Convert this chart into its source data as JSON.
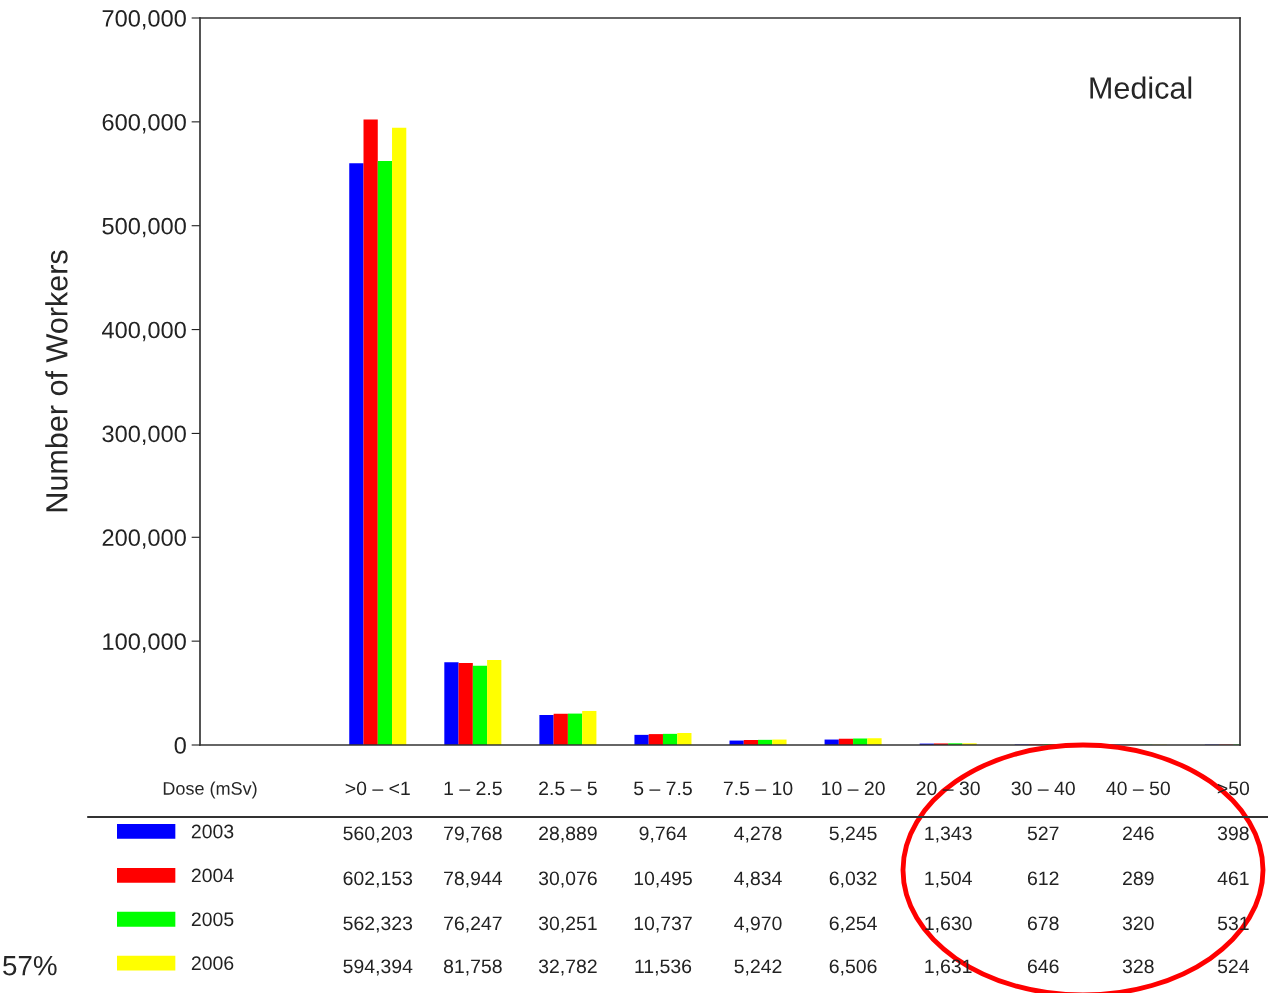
{
  "chart_data": {
    "type": "bar",
    "title": "Medical",
    "xlabel": "Dose (mSv)",
    "ylabel": "Number of Workers",
    "categories": [
      ">0 – <1",
      "1 – 2.5",
      "2.5 – 5",
      "5 – 7.5",
      "7.5 – 10",
      "10 – 20",
      "20 – 30",
      "30 – 40",
      "40 – 50",
      ">50"
    ],
    "series": [
      {
        "name": "2003",
        "color": "#0000ff",
        "values": [
          560203,
          79768,
          28889,
          9764,
          4278,
          5245,
          1343,
          527,
          246,
          398
        ],
        "value_labels": [
          "560,203",
          "79,768",
          "28,889",
          "9,764",
          "4,278",
          "5,245",
          "1,343",
          "527",
          "246",
          "398"
        ]
      },
      {
        "name": "2004",
        "color": "#ff0000",
        "values": [
          602153,
          78944,
          30076,
          10495,
          4834,
          6032,
          1504,
          612,
          289,
          461
        ],
        "value_labels": [
          "602,153",
          "78,944",
          "30,076",
          "10,495",
          "4,834",
          "6,032",
          "1,504",
          "612",
          "289",
          "461"
        ]
      },
      {
        "name": "2005",
        "color": "#00ff00",
        "values": [
          562323,
          76247,
          30251,
          10737,
          4970,
          6254,
          1630,
          678,
          320,
          531
        ],
        "value_labels": [
          "562,323",
          "76,247",
          "30,251",
          "10,737",
          "4,970",
          "6,254",
          "1,630",
          "678",
          "320",
          "531"
        ]
      },
      {
        "name": "2006",
        "color": "#ffff00",
        "values": [
          594394,
          81758,
          32782,
          11536,
          5242,
          6506,
          1631,
          646,
          328,
          524
        ],
        "value_labels": [
          "594,394",
          "81,758",
          "32,782",
          "11,536",
          "5,242",
          "6,506",
          "1,631",
          "646",
          "328",
          "524"
        ]
      }
    ],
    "ylim": [
      0,
      700000
    ],
    "yticks": [
      0,
      {
        "value": 100000,
        "label": "100,000"
      },
      {
        "value": 200000,
        "label": "200,000"
      },
      {
        "value": 300000,
        "label": "300,000"
      },
      {
        "value": 400000,
        "label": "400,000"
      },
      {
        "value": 500000,
        "label": "500,000"
      },
      {
        "value": 600000,
        "label": "600,000"
      },
      {
        "value": 700000,
        "label": "700,000"
      }
    ],
    "tick_labels": "y",
    "legend": "bottom",
    "annotations": [
      "57%"
    ]
  }
}
